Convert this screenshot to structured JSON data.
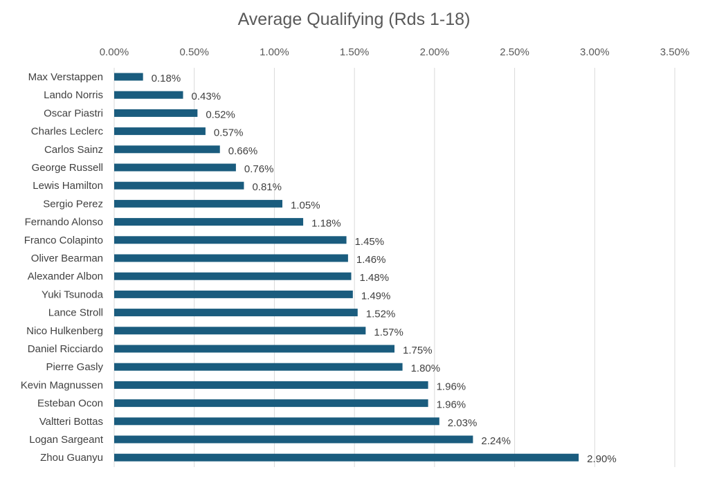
{
  "chart_data": {
    "type": "bar",
    "orientation": "horizontal",
    "title": "Average Qualifying (Rds 1-18)",
    "xlabel": "",
    "ylabel": "",
    "x_axis_position": "top",
    "xlim": [
      0,
      0.035
    ],
    "x_ticks": [
      0,
      0.005,
      0.01,
      0.015,
      0.02,
      0.025,
      0.03,
      0.035
    ],
    "x_tick_labels": [
      "0.00%",
      "0.50%",
      "1.00%",
      "1.50%",
      "2.00%",
      "2.50%",
      "3.00%",
      "3.50%"
    ],
    "grid": true,
    "legend": "none",
    "bar_color": "#1a5c7e",
    "categories": [
      "Max Verstappen",
      "Lando Norris",
      "Oscar Piastri",
      "Charles Leclerc",
      "Carlos Sainz",
      "George Russell",
      "Lewis Hamilton",
      "Sergio Perez",
      "Fernando Alonso",
      "Franco Colapinto",
      "Oliver Bearman",
      "Alexander Albon",
      "Yuki Tsunoda",
      "Lance Stroll",
      "Nico Hulkenberg",
      "Daniel Ricciardo",
      "Pierre Gasly",
      "Kevin Magnussen",
      "Esteban Ocon",
      "Valtteri Bottas",
      "Logan Sargeant",
      "Zhou Guanyu"
    ],
    "values": [
      0.0018,
      0.0043,
      0.0052,
      0.0057,
      0.0066,
      0.0076,
      0.0081,
      0.0105,
      0.0118,
      0.0145,
      0.0146,
      0.0148,
      0.0149,
      0.0152,
      0.0157,
      0.0175,
      0.018,
      0.0196,
      0.0196,
      0.0203,
      0.0224,
      0.029
    ],
    "value_labels": [
      "0.18%",
      "0.43%",
      "0.52%",
      "0.57%",
      "0.66%",
      "0.76%",
      "0.81%",
      "1.05%",
      "1.18%",
      "1.45%",
      "1.46%",
      "1.48%",
      "1.49%",
      "1.52%",
      "1.57%",
      "1.75%",
      "1.80%",
      "1.96%",
      "1.96%",
      "2.03%",
      "2.24%",
      "2.90%"
    ]
  }
}
